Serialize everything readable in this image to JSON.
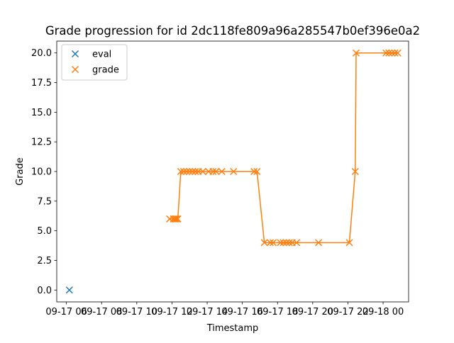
{
  "chart_data": {
    "type": "scatter",
    "title": "Grade progression for id 2dc118fe809a96a285547b0ef396e0a2",
    "xlabel": "Timestamp",
    "ylabel": "Grade",
    "x_axis_type": "datetime",
    "xlim": [
      "2024-09-17 05:27",
      "2024-09-18 01:27"
    ],
    "ylim": [
      -1.0,
      21.0
    ],
    "x_ticks": [
      {
        "value": "2024-09-17 06:00",
        "label": "09-17 06"
      },
      {
        "value": "2024-09-17 08:00",
        "label": "09-17 08"
      },
      {
        "value": "2024-09-17 10:00",
        "label": "09-17 10"
      },
      {
        "value": "2024-09-17 12:00",
        "label": "09-17 12"
      },
      {
        "value": "2024-09-17 14:00",
        "label": "09-17 14"
      },
      {
        "value": "2024-09-17 16:00",
        "label": "09-17 16"
      },
      {
        "value": "2024-09-17 18:00",
        "label": "09-17 18"
      },
      {
        "value": "2024-09-17 20:00",
        "label": "09-17 20"
      },
      {
        "value": "2024-09-17 22:00",
        "label": "09-17 22"
      },
      {
        "value": "2024-09-18 00:00",
        "label": "09-18 00"
      }
    ],
    "y_ticks": [
      {
        "value": 0,
        "label": "0.0"
      },
      {
        "value": 2.5,
        "label": "2.5"
      },
      {
        "value": 5,
        "label": "5.0"
      },
      {
        "value": 7.5,
        "label": "7.5"
      },
      {
        "value": 10,
        "label": "10.0"
      },
      {
        "value": 12.5,
        "label": "12.5"
      },
      {
        "value": 15,
        "label": "15.0"
      },
      {
        "value": 17.5,
        "label": "17.5"
      },
      {
        "value": 20,
        "label": "20.0"
      }
    ],
    "grid": false,
    "legend_position": "upper-left",
    "series": [
      {
        "name": "eval",
        "color": "#1f77b4",
        "marker": "x",
        "line": false,
        "points": [
          {
            "x": "2024-09-17 06:10",
            "y": 0
          }
        ]
      },
      {
        "name": "grade",
        "color": "#ff7f0e",
        "marker": "x",
        "line": true,
        "points": [
          {
            "x": "2024-09-17 11:52",
            "y": 6
          },
          {
            "x": "2024-09-17 12:05",
            "y": 6
          },
          {
            "x": "2024-09-17 12:10",
            "y": 6
          },
          {
            "x": "2024-09-17 12:15",
            "y": 6
          },
          {
            "x": "2024-09-17 12:20",
            "y": 6
          },
          {
            "x": "2024-09-17 12:30",
            "y": 10
          },
          {
            "x": "2024-09-17 12:40",
            "y": 10
          },
          {
            "x": "2024-09-17 12:50",
            "y": 10
          },
          {
            "x": "2024-09-17 13:00",
            "y": 10
          },
          {
            "x": "2024-09-17 13:10",
            "y": 10
          },
          {
            "x": "2024-09-17 13:20",
            "y": 10
          },
          {
            "x": "2024-09-17 13:30",
            "y": 10
          },
          {
            "x": "2024-09-17 13:45",
            "y": 10
          },
          {
            "x": "2024-09-17 14:05",
            "y": 10
          },
          {
            "x": "2024-09-17 14:20",
            "y": 10
          },
          {
            "x": "2024-09-17 14:30",
            "y": 10
          },
          {
            "x": "2024-09-17 14:50",
            "y": 10
          },
          {
            "x": "2024-09-17 15:30",
            "y": 10
          },
          {
            "x": "2024-09-17 16:40",
            "y": 10
          },
          {
            "x": "2024-09-17 16:50",
            "y": 10
          },
          {
            "x": "2024-09-17 17:15",
            "y": 4
          },
          {
            "x": "2024-09-17 17:35",
            "y": 4
          },
          {
            "x": "2024-09-17 17:45",
            "y": 4
          },
          {
            "x": "2024-09-17 18:10",
            "y": 4
          },
          {
            "x": "2024-09-17 18:20",
            "y": 4
          },
          {
            "x": "2024-09-17 18:30",
            "y": 4
          },
          {
            "x": "2024-09-17 18:40",
            "y": 4
          },
          {
            "x": "2024-09-17 18:50",
            "y": 4
          },
          {
            "x": "2024-09-17 19:05",
            "y": 4
          },
          {
            "x": "2024-09-17 20:20",
            "y": 4
          },
          {
            "x": "2024-09-17 22:05",
            "y": 4
          },
          {
            "x": "2024-09-17 22:25",
            "y": 10
          },
          {
            "x": "2024-09-17 22:28",
            "y": 20
          },
          {
            "x": "2024-09-18 00:10",
            "y": 20
          },
          {
            "x": "2024-09-18 00:20",
            "y": 20
          },
          {
            "x": "2024-09-18 00:30",
            "y": 20
          },
          {
            "x": "2024-09-18 00:40",
            "y": 20
          },
          {
            "x": "2024-09-18 00:50",
            "y": 20
          }
        ]
      }
    ]
  }
}
